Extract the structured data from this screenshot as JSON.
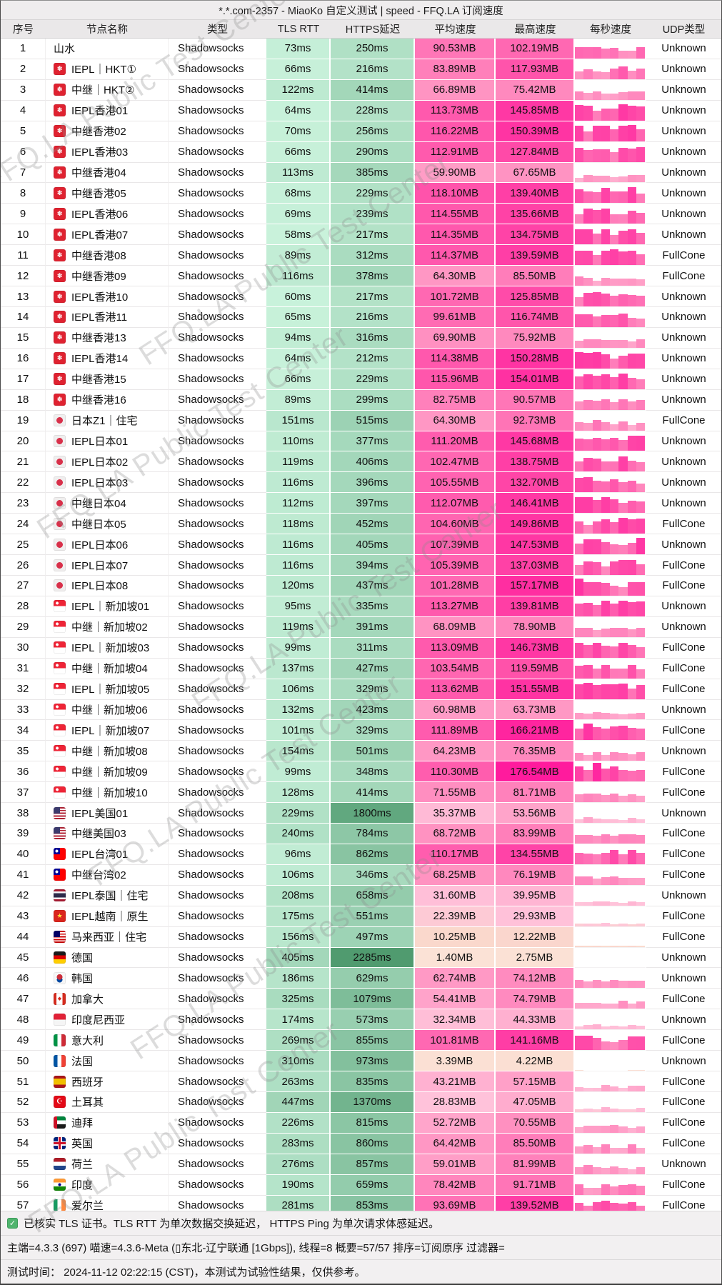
{
  "title": "*.*.com-2357 - MiaoKo 自定义测试 | speed - FFQ.LA 订阅速度",
  "headers": [
    "序号",
    "节点名称",
    "类型",
    "TLS RTT",
    "HTTPS延迟",
    "平均速度",
    "最高速度",
    "每秒速度",
    "UDP类型"
  ],
  "watermark": "FFQ.LA Public Test Center",
  "footer": {
    "tls_note": "已核实 TLS 证书。TLS RTT 为单次数据交换延迟， HTTPS Ping 为单次请求体感延迟。",
    "info": "主端=4.3.3 (697) 喵速=4.3.6-Meta (▯东北-辽宁联通 [1Gbps]), 线程=8 概要=57/57 排序=订阅原序 过滤器=",
    "time": "测试时间： 2024-11-12 02:22:15 (CST)，本测试为试验性结果，仅供参考。"
  },
  "colors": {
    "latency_light": "#cdf5df",
    "latency_dark": "#4f9b6f",
    "latency_max_ms": 2300,
    "speed_max_mb": 176.54,
    "speed_stops": [
      [
        0,
        "#fbe4d8"
      ],
      [
        0.06,
        "#fad8cc"
      ],
      [
        0.16,
        "#ffc3da"
      ],
      [
        0.38,
        "#ff94c2"
      ],
      [
        0.68,
        "#ff51aa"
      ],
      [
        1,
        "#ff1b9d"
      ]
    ],
    "check_green": "#50b46e"
  },
  "rows": [
    {
      "seq": 1,
      "cc": "",
      "name": "山水",
      "type": "Shadowsocks",
      "tls": "73ms",
      "https": "250ms",
      "avg": "90.53MB",
      "max": "102.19MB",
      "udp": "Unknown"
    },
    {
      "seq": 2,
      "cc": "hk",
      "name": "IEPL｜HKT①",
      "type": "Shadowsocks",
      "tls": "66ms",
      "https": "216ms",
      "avg": "83.89MB",
      "max": "117.93MB",
      "udp": "Unknown"
    },
    {
      "seq": 3,
      "cc": "hk",
      "name": "中继｜HKT②",
      "type": "Shadowsocks",
      "tls": "122ms",
      "https": "414ms",
      "avg": "66.89MB",
      "max": "75.42MB",
      "udp": "Unknown"
    },
    {
      "seq": 4,
      "cc": "hk",
      "name": "IEPL香港01",
      "type": "Shadowsocks",
      "tls": "64ms",
      "https": "228ms",
      "avg": "113.73MB",
      "max": "145.85MB",
      "udp": "Unknown"
    },
    {
      "seq": 5,
      "cc": "hk",
      "name": "中继香港02",
      "type": "Shadowsocks",
      "tls": "70ms",
      "https": "256ms",
      "avg": "116.22MB",
      "max": "150.39MB",
      "udp": "Unknown"
    },
    {
      "seq": 6,
      "cc": "hk",
      "name": "IEPL香港03",
      "type": "Shadowsocks",
      "tls": "66ms",
      "https": "290ms",
      "avg": "112.91MB",
      "max": "127.84MB",
      "udp": "Unknown"
    },
    {
      "seq": 7,
      "cc": "hk",
      "name": "中继香港04",
      "type": "Shadowsocks",
      "tls": "113ms",
      "https": "385ms",
      "avg": "59.90MB",
      "max": "67.65MB",
      "udp": "Unknown"
    },
    {
      "seq": 8,
      "cc": "hk",
      "name": "中继香港05",
      "type": "Shadowsocks",
      "tls": "68ms",
      "https": "229ms",
      "avg": "118.10MB",
      "max": "139.40MB",
      "udp": "Unknown"
    },
    {
      "seq": 9,
      "cc": "hk",
      "name": "IEPL香港06",
      "type": "Shadowsocks",
      "tls": "69ms",
      "https": "239ms",
      "avg": "114.55MB",
      "max": "135.66MB",
      "udp": "Unknown"
    },
    {
      "seq": 10,
      "cc": "hk",
      "name": "IEPL香港07",
      "type": "Shadowsocks",
      "tls": "58ms",
      "https": "217ms",
      "avg": "114.35MB",
      "max": "134.75MB",
      "udp": "Unknown"
    },
    {
      "seq": 11,
      "cc": "hk",
      "name": "中继香港08",
      "type": "Shadowsocks",
      "tls": "89ms",
      "https": "312ms",
      "avg": "114.37MB",
      "max": "139.59MB",
      "udp": "FullCone"
    },
    {
      "seq": 12,
      "cc": "hk",
      "name": "中继香港09",
      "type": "Shadowsocks",
      "tls": "116ms",
      "https": "378ms",
      "avg": "64.30MB",
      "max": "85.50MB",
      "udp": "FullCone"
    },
    {
      "seq": 13,
      "cc": "hk",
      "name": "IEPL香港10",
      "type": "Shadowsocks",
      "tls": "60ms",
      "https": "217ms",
      "avg": "101.72MB",
      "max": "125.85MB",
      "udp": "Unknown"
    },
    {
      "seq": 14,
      "cc": "hk",
      "name": "IEPL香港11",
      "type": "Shadowsocks",
      "tls": "65ms",
      "https": "216ms",
      "avg": "99.61MB",
      "max": "116.74MB",
      "udp": "Unknown"
    },
    {
      "seq": 15,
      "cc": "hk",
      "name": "中继香港13",
      "type": "Shadowsocks",
      "tls": "94ms",
      "https": "316ms",
      "avg": "69.90MB",
      "max": "75.92MB",
      "udp": "Unknown"
    },
    {
      "seq": 16,
      "cc": "hk",
      "name": "IEPL香港14",
      "type": "Shadowsocks",
      "tls": "64ms",
      "https": "212ms",
      "avg": "114.38MB",
      "max": "150.28MB",
      "udp": "Unknown"
    },
    {
      "seq": 17,
      "cc": "hk",
      "name": "中继香港15",
      "type": "Shadowsocks",
      "tls": "66ms",
      "https": "229ms",
      "avg": "115.96MB",
      "max": "154.01MB",
      "udp": "Unknown"
    },
    {
      "seq": 18,
      "cc": "hk",
      "name": "中继香港16",
      "type": "Shadowsocks",
      "tls": "89ms",
      "https": "299ms",
      "avg": "82.75MB",
      "max": "90.57MB",
      "udp": "Unknown"
    },
    {
      "seq": 19,
      "cc": "jp",
      "name": "日本Z1｜住宅",
      "type": "Shadowsocks",
      "tls": "151ms",
      "https": "515ms",
      "avg": "64.30MB",
      "max": "92.73MB",
      "udp": "FullCone"
    },
    {
      "seq": 20,
      "cc": "jp",
      "name": "IEPL日本01",
      "type": "Shadowsocks",
      "tls": "110ms",
      "https": "377ms",
      "avg": "111.20MB",
      "max": "145.68MB",
      "udp": "Unknown"
    },
    {
      "seq": 21,
      "cc": "jp",
      "name": "IEPL日本02",
      "type": "Shadowsocks",
      "tls": "119ms",
      "https": "406ms",
      "avg": "102.47MB",
      "max": "138.75MB",
      "udp": "Unknown"
    },
    {
      "seq": 22,
      "cc": "jp",
      "name": "IEPL日本03",
      "type": "Shadowsocks",
      "tls": "116ms",
      "https": "396ms",
      "avg": "105.55MB",
      "max": "132.70MB",
      "udp": "Unknown"
    },
    {
      "seq": 23,
      "cc": "jp",
      "name": "中继日本04",
      "type": "Shadowsocks",
      "tls": "112ms",
      "https": "397ms",
      "avg": "112.07MB",
      "max": "146.41MB",
      "udp": "Unknown"
    },
    {
      "seq": 24,
      "cc": "jp",
      "name": "中继日本05",
      "type": "Shadowsocks",
      "tls": "118ms",
      "https": "452ms",
      "avg": "104.60MB",
      "max": "149.86MB",
      "udp": "FullCone"
    },
    {
      "seq": 25,
      "cc": "jp",
      "name": "IEPL日本06",
      "type": "Shadowsocks",
      "tls": "116ms",
      "https": "405ms",
      "avg": "107.39MB",
      "max": "147.53MB",
      "udp": "Unknown"
    },
    {
      "seq": 26,
      "cc": "jp",
      "name": "IEPL日本07",
      "type": "Shadowsocks",
      "tls": "116ms",
      "https": "394ms",
      "avg": "105.39MB",
      "max": "137.03MB",
      "udp": "FullCone"
    },
    {
      "seq": 27,
      "cc": "jp",
      "name": "IEPL日本08",
      "type": "Shadowsocks",
      "tls": "120ms",
      "https": "437ms",
      "avg": "101.28MB",
      "max": "157.17MB",
      "udp": "FullCone"
    },
    {
      "seq": 28,
      "cc": "sg",
      "name": "IEPL｜新加坡01",
      "type": "Shadowsocks",
      "tls": "95ms",
      "https": "335ms",
      "avg": "113.27MB",
      "max": "139.81MB",
      "udp": "Unknown"
    },
    {
      "seq": 29,
      "cc": "sg",
      "name": "中继｜新加坡02",
      "type": "Shadowsocks",
      "tls": "119ms",
      "https": "391ms",
      "avg": "68.09MB",
      "max": "78.90MB",
      "udp": "Unknown"
    },
    {
      "seq": 30,
      "cc": "sg",
      "name": "IEPL｜新加坡03",
      "type": "Shadowsocks",
      "tls": "99ms",
      "https": "311ms",
      "avg": "113.09MB",
      "max": "146.73MB",
      "udp": "FullCone"
    },
    {
      "seq": 31,
      "cc": "sg",
      "name": "中继｜新加坡04",
      "type": "Shadowsocks",
      "tls": "137ms",
      "https": "427ms",
      "avg": "103.54MB",
      "max": "119.59MB",
      "udp": "FullCone"
    },
    {
      "seq": 32,
      "cc": "sg",
      "name": "IEPL｜新加坡05",
      "type": "Shadowsocks",
      "tls": "106ms",
      "https": "329ms",
      "avg": "113.62MB",
      "max": "151.55MB",
      "udp": "FullCone"
    },
    {
      "seq": 33,
      "cc": "sg",
      "name": "中继｜新加坡06",
      "type": "Shadowsocks",
      "tls": "132ms",
      "https": "423ms",
      "avg": "60.98MB",
      "max": "63.73MB",
      "udp": "Unknown"
    },
    {
      "seq": 34,
      "cc": "sg",
      "name": "IEPL｜新加坡07",
      "type": "Shadowsocks",
      "tls": "101ms",
      "https": "329ms",
      "avg": "111.89MB",
      "max": "166.21MB",
      "udp": "FullCone"
    },
    {
      "seq": 35,
      "cc": "sg",
      "name": "中继｜新加坡08",
      "type": "Shadowsocks",
      "tls": "154ms",
      "https": "501ms",
      "avg": "64.23MB",
      "max": "76.35MB",
      "udp": "Unknown"
    },
    {
      "seq": 36,
      "cc": "sg",
      "name": "中继｜新加坡09",
      "type": "Shadowsocks",
      "tls": "99ms",
      "https": "348ms",
      "avg": "110.30MB",
      "max": "176.54MB",
      "udp": "FullCone"
    },
    {
      "seq": 37,
      "cc": "sg",
      "name": "中继｜新加坡10",
      "type": "Shadowsocks",
      "tls": "128ms",
      "https": "414ms",
      "avg": "71.55MB",
      "max": "81.71MB",
      "udp": "FullCone"
    },
    {
      "seq": 38,
      "cc": "us",
      "name": "IEPL美国01",
      "type": "Shadowsocks",
      "tls": "229ms",
      "https": "1800ms",
      "avg": "35.37MB",
      "max": "53.56MB",
      "udp": "Unknown"
    },
    {
      "seq": 39,
      "cc": "us",
      "name": "中继美国03",
      "type": "Shadowsocks",
      "tls": "240ms",
      "https": "784ms",
      "avg": "68.72MB",
      "max": "83.99MB",
      "udp": "FullCone"
    },
    {
      "seq": 40,
      "cc": "tw",
      "name": "IEPL台湾01",
      "type": "Shadowsocks",
      "tls": "96ms",
      "https": "862ms",
      "avg": "110.17MB",
      "max": "134.55MB",
      "udp": "FullCone"
    },
    {
      "seq": 41,
      "cc": "tw",
      "name": "中继台湾02",
      "type": "Shadowsocks",
      "tls": "106ms",
      "https": "346ms",
      "avg": "68.25MB",
      "max": "76.19MB",
      "udp": "FullCone"
    },
    {
      "seq": 42,
      "cc": "th",
      "name": "IEPL泰国｜住宅",
      "type": "Shadowsocks",
      "tls": "208ms",
      "https": "658ms",
      "avg": "31.60MB",
      "max": "39.95MB",
      "udp": "Unknown"
    },
    {
      "seq": 43,
      "cc": "vn",
      "name": "IEPL越南｜原生",
      "type": "Shadowsocks",
      "tls": "175ms",
      "https": "551ms",
      "avg": "22.39MB",
      "max": "29.93MB",
      "udp": "FullCone"
    },
    {
      "seq": 44,
      "cc": "my",
      "name": "马来西亚｜住宅",
      "type": "Shadowsocks",
      "tls": "156ms",
      "https": "497ms",
      "avg": "10.25MB",
      "max": "12.22MB",
      "udp": "FullCone"
    },
    {
      "seq": 45,
      "cc": "de",
      "name": "德国",
      "type": "Shadowsocks",
      "tls": "405ms",
      "https": "2285ms",
      "avg": "1.40MB",
      "max": "2.75MB",
      "udp": "Unknown"
    },
    {
      "seq": 46,
      "cc": "kr",
      "name": "韩国",
      "type": "Shadowsocks",
      "tls": "186ms",
      "https": "629ms",
      "avg": "62.74MB",
      "max": "74.12MB",
      "udp": "Unknown"
    },
    {
      "seq": 47,
      "cc": "ca",
      "name": "加拿大",
      "type": "Shadowsocks",
      "tls": "325ms",
      "https": "1079ms",
      "avg": "54.41MB",
      "max": "74.79MB",
      "udp": "FullCone"
    },
    {
      "seq": 48,
      "cc": "id",
      "name": "印度尼西亚",
      "type": "Shadowsocks",
      "tls": "174ms",
      "https": "573ms",
      "avg": "32.34MB",
      "max": "44.33MB",
      "udp": "Unknown"
    },
    {
      "seq": 49,
      "cc": "it",
      "name": "意大利",
      "type": "Shadowsocks",
      "tls": "269ms",
      "https": "855ms",
      "avg": "101.81MB",
      "max": "141.16MB",
      "udp": "FullCone"
    },
    {
      "seq": 50,
      "cc": "fr",
      "name": "法国",
      "type": "Shadowsocks",
      "tls": "310ms",
      "https": "973ms",
      "avg": "3.39MB",
      "max": "4.22MB",
      "udp": "Unknown"
    },
    {
      "seq": 51,
      "cc": "es",
      "name": "西班牙",
      "type": "Shadowsocks",
      "tls": "263ms",
      "https": "835ms",
      "avg": "43.21MB",
      "max": "57.15MB",
      "udp": "FullCone"
    },
    {
      "seq": 52,
      "cc": "tr",
      "name": "土耳其",
      "type": "Shadowsocks",
      "tls": "447ms",
      "https": "1370ms",
      "avg": "28.83MB",
      "max": "47.05MB",
      "udp": "FullCone"
    },
    {
      "seq": 53,
      "cc": "ae",
      "name": "迪拜",
      "type": "Shadowsocks",
      "tls": "226ms",
      "https": "815ms",
      "avg": "52.72MB",
      "max": "70.55MB",
      "udp": "FullCone"
    },
    {
      "seq": 54,
      "cc": "gb",
      "name": "英国",
      "type": "Shadowsocks",
      "tls": "283ms",
      "https": "860ms",
      "avg": "64.42MB",
      "max": "85.50MB",
      "udp": "FullCone"
    },
    {
      "seq": 55,
      "cc": "nl",
      "name": "荷兰",
      "type": "Shadowsocks",
      "tls": "276ms",
      "https": "857ms",
      "avg": "59.01MB",
      "max": "81.99MB",
      "udp": "Unknown"
    },
    {
      "seq": 56,
      "cc": "in",
      "name": "印度",
      "type": "Shadowsocks",
      "tls": "190ms",
      "https": "659ms",
      "avg": "78.42MB",
      "max": "91.71MB",
      "udp": "FullCone"
    },
    {
      "seq": 57,
      "cc": "ie",
      "name": "爱尔兰",
      "type": "Shadowsocks",
      "tls": "281ms",
      "https": "853ms",
      "avg": "93.69MB",
      "max": "139.52MB",
      "udp": "FullCone"
    }
  ]
}
